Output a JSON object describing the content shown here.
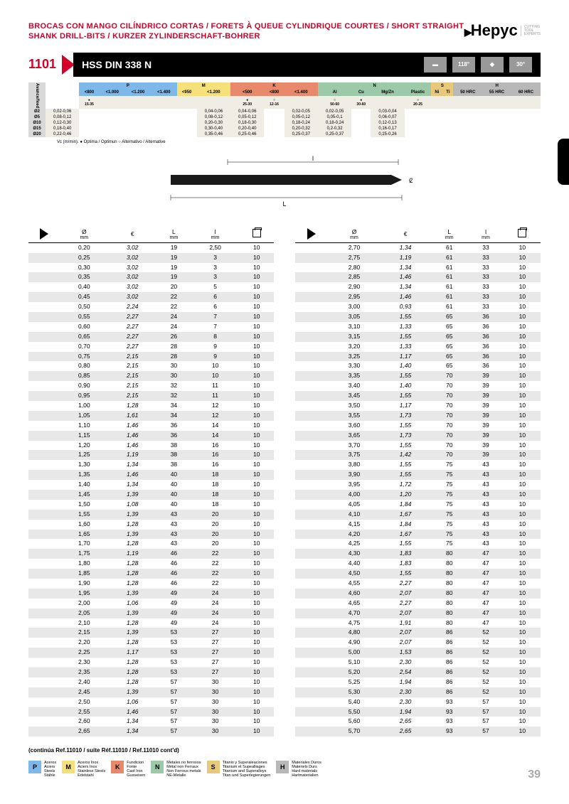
{
  "header": {
    "title": "BROCAS CON MANGO CILÍNDRICO CORTAS / FORETS À QUEUE CYLINDRIQUE COURTES / SHORT STRAIGHT SHANK DRILL-BITS / KURZER ZYLINDERSCHAFT-BOHRER",
    "logo": "Hepyc",
    "logo_sub": "CUTTING\nTOOL\nEXPERTS"
  },
  "section": {
    "number": "1101",
    "title": "HSS DIN 338 N",
    "angle1": "118°",
    "angle2": "30°"
  },
  "feed_header": {
    "row_label": "Avance/feed",
    "categories": [
      {
        "code": "P",
        "cls": "cat-P",
        "cols": [
          "<800",
          "<1.000",
          "<1.200",
          "<1.400"
        ]
      },
      {
        "code": "M",
        "cls": "cat-M",
        "cols": [
          "<950",
          "<1.200"
        ]
      },
      {
        "code": "K",
        "cls": "cat-K",
        "cols": [
          "<500",
          "<800",
          "<1.400"
        ]
      },
      {
        "code": "N",
        "cls": "cat-N",
        "cols": [
          "Al",
          "Cu",
          "Mg/Zn",
          "Plastic"
        ]
      },
      {
        "code": "S",
        "cls": "cat-S",
        "cols": [
          "Ni",
          "Ti"
        ]
      },
      {
        "code": "H",
        "cls": "cat-H",
        "cols": [
          "50 HRC",
          "55 HRC",
          "60 HRC"
        ]
      }
    ],
    "vc_row": [
      "●\n15-35",
      "",
      "",
      "",
      "",
      "",
      "●\n25-30",
      "○\n12-16",
      "",
      "○\n50-60",
      "●\n30-60",
      "",
      "○\n20-25",
      "",
      "",
      "",
      "",
      ""
    ],
    "diams": [
      "Ø2",
      "Ø5",
      "Ø10",
      "Ø15",
      "Ø20"
    ],
    "feed_rows": [
      [
        "0,02-0,06",
        "",
        "",
        "",
        "",
        "",
        "0,04-0,06",
        "0,04-0,06",
        "",
        "0,02-0,05",
        "0,02-0,05",
        "",
        "0,03-0,04",
        "",
        "",
        "",
        "",
        ""
      ],
      [
        "0,08-0,12",
        "",
        "",
        "",
        "",
        "",
        "0,08-0,12",
        "0,05-0,12",
        "",
        "0,05-0,12",
        "0,05-0,1",
        "",
        "0,06-0,07",
        "",
        "",
        "",
        "",
        ""
      ],
      [
        "0,12-0,30",
        "",
        "",
        "",
        "",
        "",
        "0,20-0,30",
        "0,18-0,30",
        "",
        "0,18-0,24",
        "0,18-0,24",
        "",
        "0,12-0,13",
        "",
        "",
        "",
        "",
        ""
      ],
      [
        "0,18-0,40",
        "",
        "",
        "",
        "",
        "",
        "0,30-0,40",
        "0,20-0,40",
        "",
        "0,20-0,32",
        "0,2-0,32",
        "",
        "0,16-0,17",
        "",
        "",
        "",
        "",
        ""
      ],
      [
        "0,22-0,46",
        "",
        "",
        "",
        "",
        "",
        "0,35-0,46",
        "0,25-0,46",
        "",
        "0,25-0,37",
        "0,25-0,37",
        "",
        "0,25-0,26",
        "",
        "",
        "",
        "",
        ""
      ]
    ],
    "note": "Vc (m/min). ● Optima / Optimun  ○ Alternativo / Alternative"
  },
  "columns": {
    "diam": "Ø",
    "diam_unit": "mm",
    "price": "€",
    "L": "L",
    "L_unit": "mm",
    "l": "l",
    "l_unit": "mm"
  },
  "left_rows": [
    [
      "0,20",
      "3,02",
      "19",
      "2,50",
      "10"
    ],
    [
      "0,25",
      "3,02",
      "19",
      "3",
      "10"
    ],
    [
      "0,30",
      "3,02",
      "19",
      "3",
      "10"
    ],
    [
      "0,35",
      "3,02",
      "19",
      "3",
      "10"
    ],
    [
      "0,40",
      "3,02",
      "20",
      "5",
      "10"
    ],
    [
      "0,45",
      "3,02",
      "22",
      "6",
      "10"
    ],
    [
      "0,50",
      "2,24",
      "22",
      "6",
      "10"
    ],
    [
      "0,55",
      "2,27",
      "24",
      "7",
      "10"
    ],
    [
      "0,60",
      "2,27",
      "24",
      "7",
      "10"
    ],
    [
      "0,65",
      "2,27",
      "26",
      "8",
      "10"
    ],
    [
      "0,70",
      "2,27",
      "28",
      "9",
      "10"
    ],
    [
      "0,75",
      "2,15",
      "28",
      "9",
      "10"
    ],
    [
      "0,80",
      "2,15",
      "30",
      "10",
      "10"
    ],
    [
      "0,85",
      "2,15",
      "30",
      "10",
      "10"
    ],
    [
      "0,90",
      "2,15",
      "32",
      "11",
      "10"
    ],
    [
      "0,95",
      "2,15",
      "32",
      "11",
      "10"
    ],
    [
      "1,00",
      "1,28",
      "34",
      "12",
      "10"
    ],
    [
      "1,05",
      "1,61",
      "34",
      "12",
      "10"
    ],
    [
      "1,10",
      "1,46",
      "36",
      "14",
      "10"
    ],
    [
      "1,15",
      "1,46",
      "36",
      "14",
      "10"
    ],
    [
      "1,20",
      "1,46",
      "38",
      "16",
      "10"
    ],
    [
      "1,25",
      "1,19",
      "38",
      "16",
      "10"
    ],
    [
      "1,30",
      "1,34",
      "38",
      "16",
      "10"
    ],
    [
      "1,35",
      "1,46",
      "40",
      "18",
      "10"
    ],
    [
      "1,40",
      "1,34",
      "40",
      "18",
      "10"
    ],
    [
      "1,45",
      "1,39",
      "40",
      "18",
      "10"
    ],
    [
      "1,50",
      "1,08",
      "40",
      "18",
      "10"
    ],
    [
      "1,55",
      "1,39",
      "43",
      "20",
      "10"
    ],
    [
      "1,60",
      "1,28",
      "43",
      "20",
      "10"
    ],
    [
      "1,65",
      "1,39",
      "43",
      "20",
      "10"
    ],
    [
      "1,70",
      "1,28",
      "43",
      "20",
      "10"
    ],
    [
      "1,75",
      "1,19",
      "46",
      "22",
      "10"
    ],
    [
      "1,80",
      "1,28",
      "46",
      "22",
      "10"
    ],
    [
      "1,85",
      "1,28",
      "46",
      "22",
      "10"
    ],
    [
      "1,90",
      "1,28",
      "46",
      "22",
      "10"
    ],
    [
      "1,95",
      "1,39",
      "49",
      "24",
      "10"
    ],
    [
      "2,00",
      "1,06",
      "49",
      "24",
      "10"
    ],
    [
      "2,05",
      "1,39",
      "49",
      "24",
      "10"
    ],
    [
      "2,10",
      "1,28",
      "49",
      "24",
      "10"
    ],
    [
      "2,15",
      "1,39",
      "53",
      "27",
      "10"
    ],
    [
      "2,20",
      "1,28",
      "53",
      "27",
      "10"
    ],
    [
      "2,25",
      "1,17",
      "53",
      "27",
      "10"
    ],
    [
      "2,30",
      "1,28",
      "53",
      "27",
      "10"
    ],
    [
      "2,35",
      "1,28",
      "53",
      "27",
      "10"
    ],
    [
      "2,40",
      "1,28",
      "57",
      "30",
      "10"
    ],
    [
      "2,45",
      "1,39",
      "57",
      "30",
      "10"
    ],
    [
      "2,50",
      "1,06",
      "57",
      "30",
      "10"
    ],
    [
      "2,55",
      "1,46",
      "57",
      "30",
      "10"
    ],
    [
      "2,60",
      "1,34",
      "57",
      "30",
      "10"
    ],
    [
      "2,65",
      "1,34",
      "57",
      "30",
      "10"
    ]
  ],
  "right_rows": [
    [
      "2,70",
      "1,34",
      "61",
      "33",
      "10"
    ],
    [
      "2,75",
      "1,19",
      "61",
      "33",
      "10"
    ],
    [
      "2,80",
      "1,34",
      "61",
      "33",
      "10"
    ],
    [
      "2,85",
      "1,46",
      "61",
      "33",
      "10"
    ],
    [
      "2,90",
      "1,34",
      "61",
      "33",
      "10"
    ],
    [
      "2,95",
      "1,46",
      "61",
      "33",
      "10"
    ],
    [
      "3,00",
      "0,93",
      "61",
      "33",
      "10"
    ],
    [
      "3,05",
      "1,55",
      "65",
      "36",
      "10"
    ],
    [
      "3,10",
      "1,33",
      "65",
      "36",
      "10"
    ],
    [
      "3,15",
      "1,55",
      "65",
      "36",
      "10"
    ],
    [
      "3,20",
      "1,33",
      "65",
      "36",
      "10"
    ],
    [
      "3,25",
      "1,17",
      "65",
      "36",
      "10"
    ],
    [
      "3,30",
      "1,40",
      "65",
      "36",
      "10"
    ],
    [
      "3,35",
      "1,55",
      "70",
      "39",
      "10"
    ],
    [
      "3,40",
      "1,40",
      "70",
      "39",
      "10"
    ],
    [
      "3,45",
      "1,55",
      "70",
      "39",
      "10"
    ],
    [
      "3,50",
      "1,17",
      "70",
      "39",
      "10"
    ],
    [
      "3,55",
      "1,73",
      "70",
      "39",
      "10"
    ],
    [
      "3,60",
      "1,55",
      "70",
      "39",
      "10"
    ],
    [
      "3,65",
      "1,73",
      "70",
      "39",
      "10"
    ],
    [
      "3,70",
      "1,55",
      "70",
      "39",
      "10"
    ],
    [
      "3,75",
      "1,42",
      "70",
      "39",
      "10"
    ],
    [
      "3,80",
      "1,55",
      "75",
      "43",
      "10"
    ],
    [
      "3,90",
      "1,55",
      "75",
      "43",
      "10"
    ],
    [
      "3,95",
      "1,72",
      "75",
      "43",
      "10"
    ],
    [
      "4,00",
      "1,20",
      "75",
      "43",
      "10"
    ],
    [
      "4,05",
      "1,84",
      "75",
      "43",
      "10"
    ],
    [
      "4,10",
      "1,67",
      "75",
      "43",
      "10"
    ],
    [
      "4,15",
      "1,84",
      "75",
      "43",
      "10"
    ],
    [
      "4,20",
      "1,67",
      "75",
      "43",
      "10"
    ],
    [
      "4,25",
      "1,55",
      "75",
      "43",
      "10"
    ],
    [
      "4,30",
      "1,83",
      "80",
      "47",
      "10"
    ],
    [
      "4,40",
      "1,83",
      "80",
      "47",
      "10"
    ],
    [
      "4,50",
      "1,55",
      "80",
      "47",
      "10"
    ],
    [
      "4,55",
      "2,27",
      "80",
      "47",
      "10"
    ],
    [
      "4,60",
      "2,07",
      "80",
      "47",
      "10"
    ],
    [
      "4,65",
      "2,27",
      "80",
      "47",
      "10"
    ],
    [
      "4,70",
      "2,07",
      "80",
      "47",
      "10"
    ],
    [
      "4,75",
      "1,91",
      "80",
      "47",
      "10"
    ],
    [
      "4,80",
      "2,07",
      "86",
      "52",
      "10"
    ],
    [
      "4,90",
      "2,07",
      "86",
      "52",
      "10"
    ],
    [
      "5,00",
      "1,53",
      "86",
      "52",
      "10"
    ],
    [
      "5,10",
      "2,30",
      "86",
      "52",
      "10"
    ],
    [
      "5,20",
      "2,54",
      "86",
      "52",
      "10"
    ],
    [
      "5,25",
      "1,94",
      "86",
      "52",
      "10"
    ],
    [
      "5,30",
      "2,30",
      "86",
      "52",
      "10"
    ],
    [
      "5,40",
      "2,30",
      "93",
      "57",
      "10"
    ],
    [
      "5,50",
      "1,94",
      "93",
      "57",
      "10"
    ],
    [
      "5,60",
      "2,65",
      "93",
      "57",
      "10"
    ],
    [
      "5,70",
      "2,65",
      "93",
      "57",
      "10"
    ]
  ],
  "cont_note": "(continúa Ref.11010 / suite Réf.11010 / Ref.11010 cont'd)",
  "legend": [
    {
      "code": "P",
      "cls": "cat-P",
      "txt": "Aceros\nAciers\nSteels\nStähle"
    },
    {
      "code": "M",
      "cls": "cat-M",
      "txt": "Aceros Inox\nAciers Inox\nStainless Steels\nEdelstahl"
    },
    {
      "code": "K",
      "cls": "cat-K",
      "txt": "Fundicion\nFonte\nCast Iron\nGusseisen"
    },
    {
      "code": "N",
      "cls": "cat-N",
      "txt": "Metales no ferrosos\nMétal non Ferraux\nNon Ferrous metals\nNE-Metalle"
    },
    {
      "code": "S",
      "cls": "cat-S",
      "txt": "Titanio y Superaleaciones\nTitanium et Supealliages\nTitanium and Superalloys\nTitan und Superlegierungen"
    },
    {
      "code": "H",
      "cls": "cat-H",
      "txt": "Materiales Duros\nMateriels Durs\nHard materials\nHartmaterialien"
    }
  ],
  "page_num": "39"
}
